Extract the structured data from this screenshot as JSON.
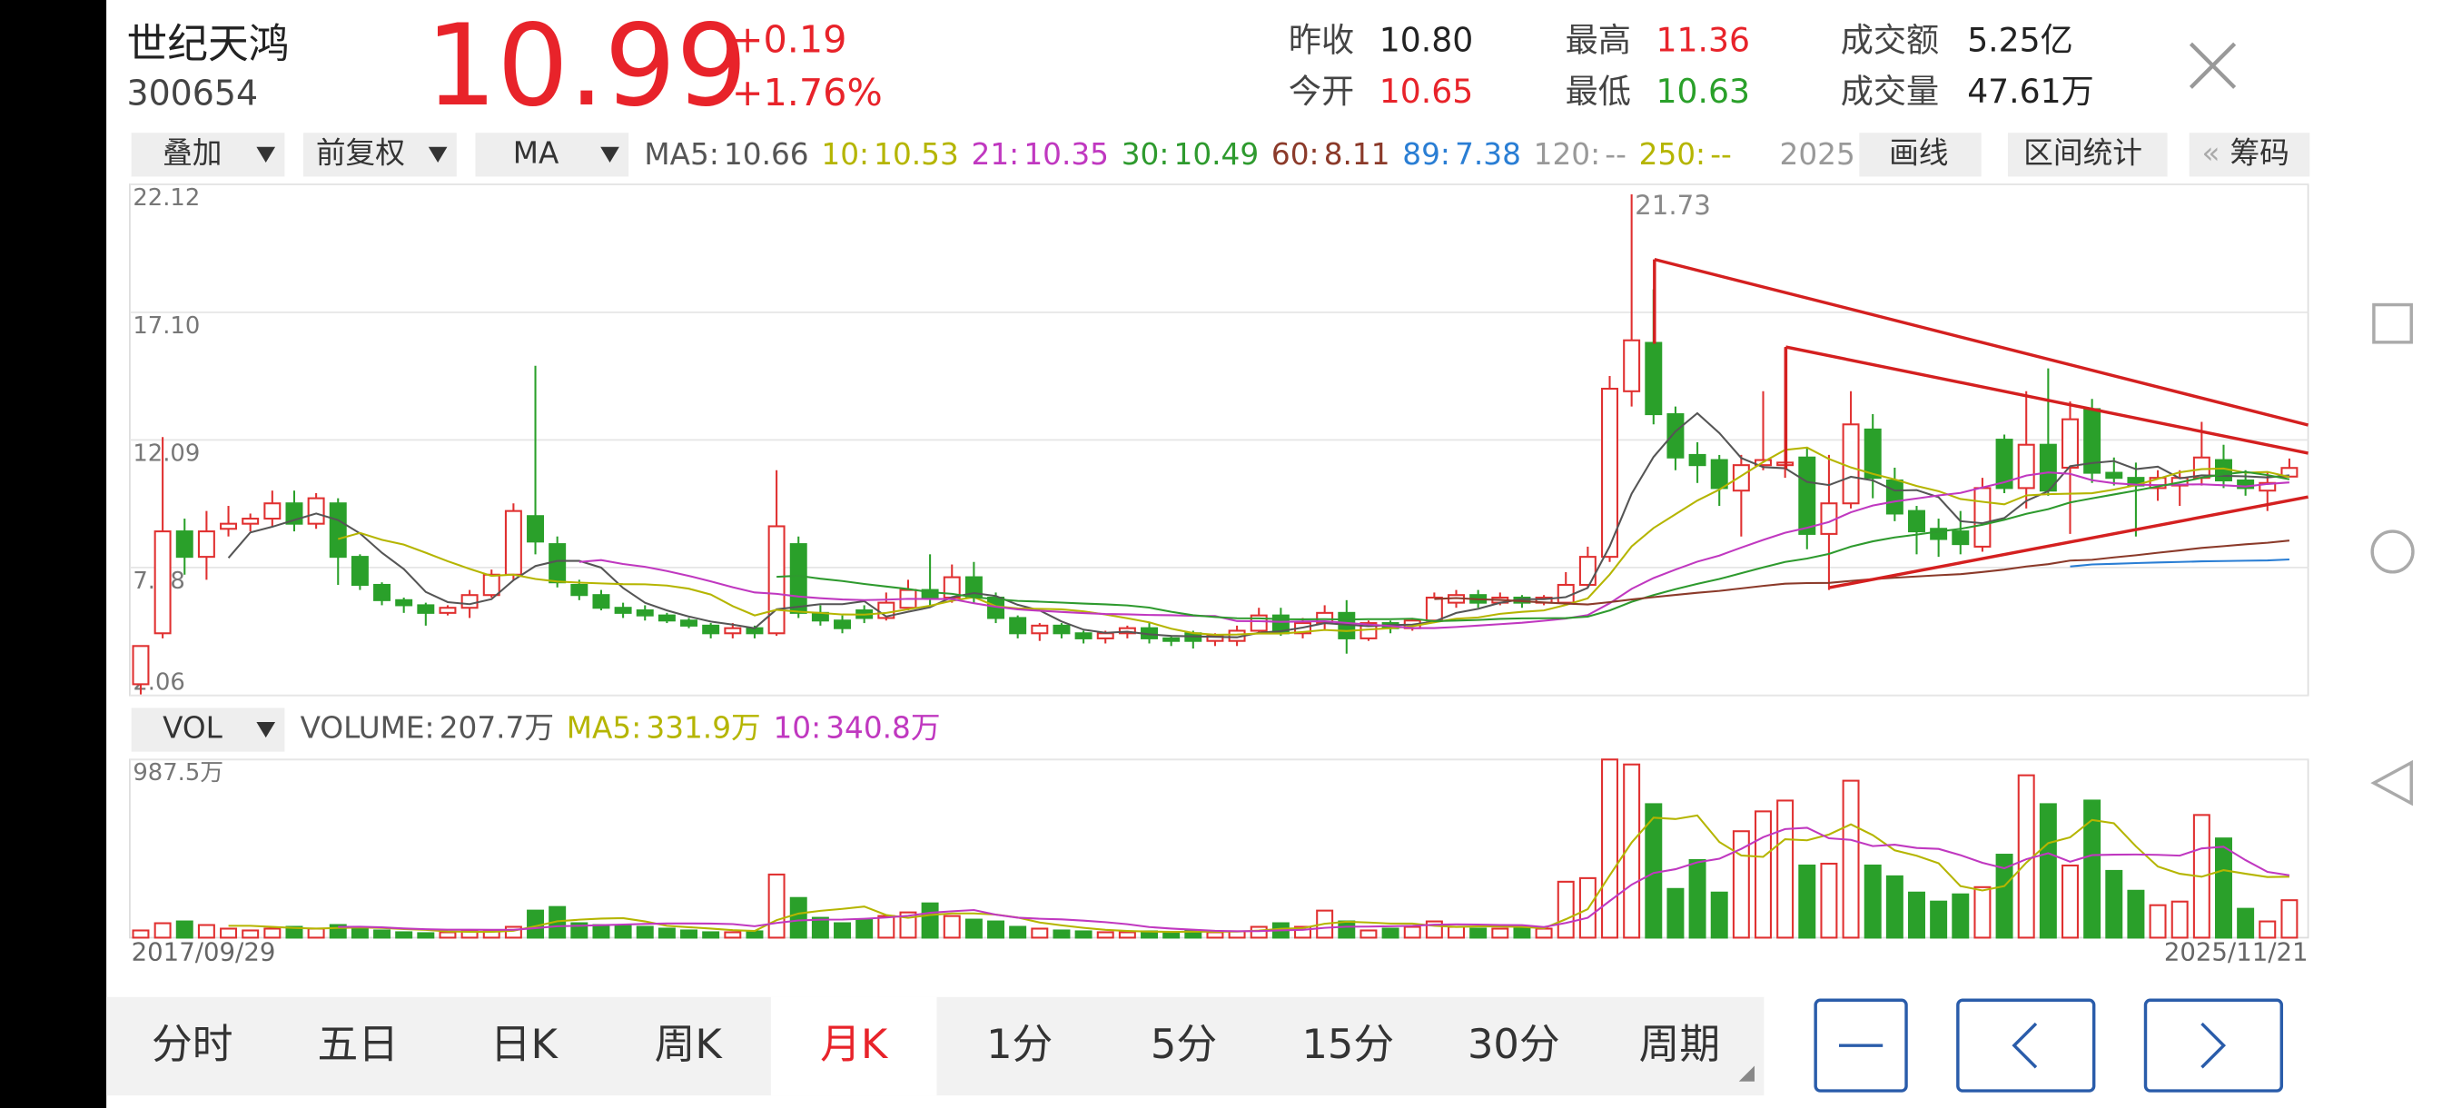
{
  "header": {
    "name": "世纪天鸿",
    "code": "300654",
    "price": "10.99",
    "change": "+0.19",
    "change_pct": "+1.76%"
  },
  "stats": [
    {
      "label": "昨收",
      "value": "10.80"
    },
    {
      "label": "今开",
      "value": "10.65"
    },
    {
      "label": "最高",
      "value": "11.36"
    },
    {
      "label": "最低",
      "value": "10.63"
    },
    {
      "label": "成交额",
      "value": "5.25亿"
    },
    {
      "label": "成交量",
      "value": "47.61万"
    }
  ],
  "toolbar": {
    "overlay": "叠加",
    "adjust": "前复权",
    "indicator": "MA",
    "year": "2025",
    "draw": "画线",
    "range": "区间统计",
    "chips": "筹码"
  },
  "ma_legend": [
    {
      "label": "MA5:",
      "value": "10.66",
      "color": "#555555"
    },
    {
      "label": "10:",
      "value": "10.53",
      "color": "#b5b500"
    },
    {
      "label": "21:",
      "value": "10.35",
      "color": "#c038c0"
    },
    {
      "label": "30:",
      "value": "10.49",
      "color": "#2e9a2e"
    },
    {
      "label": "60:",
      "value": "8.11",
      "color": "#8b3a2a"
    },
    {
      "label": "89:",
      "value": "7.38",
      "color": "#2a7ed4"
    },
    {
      "label": "120:",
      "value": "--",
      "color": "#999999"
    },
    {
      "label": "250:",
      "value": "--",
      "color": "#b5b500"
    }
  ],
  "vol_legend": {
    "indicator": "VOL",
    "items": [
      {
        "label": "VOLUME:",
        "value": "207.7万",
        "color": "#555555"
      },
      {
        "label": "MA5:",
        "value": "331.9万",
        "color": "#b5b500"
      },
      {
        "label": "10:",
        "value": "340.8万",
        "color": "#c038c0"
      }
    ]
  },
  "tabs": [
    "分时",
    "五日",
    "日K",
    "周K",
    "月K",
    "1分",
    "5分",
    "15分",
    "30分",
    "周期"
  ],
  "selected_tab": 4,
  "chart_data": [
    {
      "type": "candlestick",
      "up_color": "#e03030",
      "down_color": "#2aa02a",
      "grid": true,
      "x": [
        "2017/09/29",
        null,
        null,
        null,
        null,
        null,
        null,
        null,
        null,
        null,
        null,
        null,
        null,
        null,
        null,
        null,
        null,
        null,
        null,
        null,
        null,
        null,
        null,
        null,
        null,
        null,
        null,
        null,
        null,
        null,
        null,
        null,
        null,
        null,
        null,
        null,
        null,
        null,
        null,
        null,
        null,
        null,
        null,
        null,
        null,
        null,
        null,
        null,
        null,
        null,
        null,
        null,
        null,
        null,
        null,
        null,
        null,
        null,
        null,
        null,
        null,
        null,
        null,
        null,
        null,
        null,
        null,
        null,
        null,
        null,
        null,
        null,
        null,
        null,
        null,
        null,
        null,
        null,
        null,
        null,
        null,
        null,
        null,
        null,
        null,
        null,
        null,
        null,
        null,
        null,
        null,
        null,
        null,
        null,
        null,
        null,
        null,
        null,
        "2025/11/21"
      ],
      "ohlc": [
        [
          2.5,
          4.0,
          2.1,
          4.0
        ],
        [
          4.5,
          12.2,
          4.3,
          8.5
        ],
        [
          8.5,
          9.0,
          6.8,
          7.5
        ],
        [
          7.5,
          9.3,
          6.6,
          8.5
        ],
        [
          8.6,
          9.5,
          8.3,
          8.8
        ],
        [
          8.8,
          9.2,
          8.5,
          9.0
        ],
        [
          9.0,
          10.1,
          8.7,
          9.6
        ],
        [
          9.6,
          10.1,
          8.5,
          8.8
        ],
        [
          8.8,
          10.0,
          8.6,
          9.8
        ],
        [
          9.6,
          9.8,
          6.4,
          7.5
        ],
        [
          7.5,
          7.6,
          6.2,
          6.4
        ],
        [
          6.4,
          6.5,
          5.6,
          5.8
        ],
        [
          5.8,
          5.9,
          5.3,
          5.6
        ],
        [
          5.6,
          5.7,
          4.8,
          5.3
        ],
        [
          5.3,
          5.6,
          5.2,
          5.5
        ],
        [
          5.5,
          6.2,
          5.1,
          6.0
        ],
        [
          6.0,
          7.0,
          5.9,
          6.8
        ],
        [
          6.8,
          9.6,
          6.6,
          9.3
        ],
        [
          9.1,
          15.0,
          7.6,
          8.1
        ],
        [
          8.0,
          8.3,
          6.3,
          6.5
        ],
        [
          6.4,
          6.6,
          5.8,
          6.0
        ],
        [
          6.0,
          6.2,
          5.4,
          5.5
        ],
        [
          5.5,
          5.7,
          5.1,
          5.3
        ],
        [
          5.4,
          5.6,
          5.0,
          5.2
        ],
        [
          5.2,
          5.3,
          4.9,
          5.0
        ],
        [
          5.0,
          5.1,
          4.7,
          4.8
        ],
        [
          4.8,
          4.9,
          4.3,
          4.5
        ],
        [
          4.5,
          4.9,
          4.3,
          4.7
        ],
        [
          4.7,
          4.8,
          4.3,
          4.5
        ],
        [
          4.5,
          10.9,
          4.4,
          8.7
        ],
        [
          8.0,
          8.3,
          5.1,
          5.3
        ],
        [
          5.3,
          5.6,
          4.8,
          5.0
        ],
        [
          5.0,
          5.2,
          4.5,
          4.7
        ],
        [
          5.4,
          5.6,
          4.9,
          5.1
        ],
        [
          5.1,
          6.1,
          5.0,
          5.7
        ],
        [
          5.5,
          6.6,
          5.4,
          6.2
        ],
        [
          6.2,
          7.6,
          5.6,
          5.9
        ],
        [
          5.9,
          7.2,
          5.7,
          6.7
        ],
        [
          6.7,
          7.3,
          5.7,
          5.9
        ],
        [
          5.9,
          6.1,
          4.9,
          5.1
        ],
        [
          5.1,
          5.2,
          4.3,
          4.5
        ],
        [
          4.5,
          4.9,
          4.2,
          4.8
        ],
        [
          4.8,
          4.9,
          4.3,
          4.5
        ],
        [
          4.5,
          4.6,
          4.1,
          4.3
        ],
        [
          4.3,
          4.6,
          4.1,
          4.5
        ],
        [
          4.5,
          4.8,
          4.3,
          4.7
        ],
        [
          4.7,
          4.9,
          4.1,
          4.3
        ],
        [
          4.3,
          4.4,
          4.0,
          4.2
        ],
        [
          4.5,
          4.6,
          3.9,
          4.2
        ],
        [
          4.2,
          4.5,
          4.0,
          4.4
        ],
        [
          4.2,
          4.8,
          4.0,
          4.6
        ],
        [
          4.6,
          5.5,
          4.5,
          5.2
        ],
        [
          5.2,
          5.5,
          4.4,
          4.5
        ],
        [
          4.5,
          5.1,
          4.3,
          4.9
        ],
        [
          4.9,
          5.6,
          4.6,
          5.3
        ],
        [
          5.3,
          5.8,
          3.7,
          4.3
        ],
        [
          4.3,
          5.0,
          4.2,
          4.9
        ],
        [
          4.9,
          5.0,
          4.5,
          4.7
        ],
        [
          4.7,
          5.1,
          4.6,
          5.0
        ],
        [
          5.0,
          6.1,
          4.9,
          5.9
        ],
        [
          5.7,
          6.2,
          5.5,
          6.0
        ],
        [
          6.0,
          6.2,
          5.5,
          5.7
        ],
        [
          5.7,
          6.1,
          5.6,
          5.9
        ],
        [
          5.9,
          6.0,
          5.5,
          5.7
        ],
        [
          5.7,
          6.0,
          5.6,
          5.9
        ],
        [
          5.7,
          6.9,
          5.6,
          6.4
        ],
        [
          6.4,
          7.9,
          6.3,
          7.5
        ],
        [
          7.5,
          14.6,
          7.3,
          14.1
        ],
        [
          14.0,
          21.73,
          13.4,
          16.0
        ],
        [
          15.9,
          18.0,
          12.7,
          13.1
        ],
        [
          13.1,
          13.4,
          10.9,
          11.4
        ],
        [
          11.5,
          12.0,
          10.4,
          11.1
        ],
        [
          11.3,
          11.5,
          9.5,
          10.2
        ],
        [
          10.1,
          11.5,
          8.3,
          11.1
        ],
        [
          11.1,
          14.0,
          10.9,
          11.3
        ],
        [
          11.1,
          15.7,
          10.6,
          11.2
        ],
        [
          11.4,
          11.8,
          7.8,
          8.4
        ],
        [
          8.4,
          11.5,
          6.2,
          9.6
        ],
        [
          9.6,
          14.0,
          9.4,
          12.7
        ],
        [
          12.5,
          13.1,
          9.8,
          10.6
        ],
        [
          10.5,
          11.0,
          8.9,
          9.2
        ],
        [
          9.3,
          9.5,
          7.6,
          8.5
        ],
        [
          8.6,
          9.0,
          7.5,
          8.2
        ],
        [
          8.5,
          9.3,
          7.6,
          8.0
        ],
        [
          7.9,
          10.6,
          7.7,
          10.2
        ],
        [
          12.1,
          12.3,
          10.0,
          10.2
        ],
        [
          10.2,
          14.0,
          9.4,
          11.9
        ],
        [
          11.9,
          14.9,
          9.9,
          10.1
        ],
        [
          11.0,
          13.6,
          8.4,
          12.9
        ],
        [
          13.3,
          13.7,
          10.4,
          10.8
        ],
        [
          10.8,
          11.4,
          10.3,
          10.6
        ],
        [
          10.6,
          11.2,
          8.3,
          10.3
        ],
        [
          10.2,
          10.9,
          9.7,
          10.6
        ],
        [
          10.3,
          10.9,
          9.5,
          10.6
        ],
        [
          10.6,
          12.8,
          10.3,
          11.4
        ],
        [
          11.3,
          11.9,
          10.2,
          10.5
        ],
        [
          10.5,
          10.9,
          9.9,
          10.2
        ],
        [
          10.1,
          10.8,
          9.3,
          10.4
        ],
        [
          10.65,
          11.36,
          10.63,
          10.99
        ]
      ],
      "ylim": [
        2.06,
        22.12
      ],
      "yticks": [
        22.12,
        {
          "value": 17.1,
          "label": "17.10"
        },
        12.09,
        7.08,
        2.06
      ]
    },
    {
      "type": "bar",
      "ylim": [
        0,
        987.5
      ],
      "yticks": [
        {
          "value": 987.5,
          "label": "987.5万"
        }
      ],
      "values": [
        40,
        80,
        90,
        70,
        50,
        40,
        50,
        60,
        50,
        70,
        50,
        40,
        30,
        25,
        30,
        35,
        40,
        60,
        150,
        170,
        80,
        70,
        70,
        60,
        50,
        40,
        30,
        30,
        35,
        350,
        220,
        110,
        80,
        100,
        120,
        140,
        190,
        120,
        100,
        90,
        60,
        50,
        40,
        35,
        30,
        30,
        35,
        30,
        40,
        30,
        35,
        60,
        80,
        60,
        150,
        90,
        40,
        50,
        60,
        90,
        60,
        50,
        50,
        50,
        50,
        310,
        330,
        987.5,
        960,
        740,
        270,
        430,
        250,
        590,
        700,
        760,
        400,
        410,
        870,
        400,
        340,
        250,
        200,
        240,
        280,
        460,
        900,
        740,
        400,
        760,
        370,
        260,
        180,
        200,
        680,
        550,
        160,
        90,
        207.7
      ]
    }
  ]
}
